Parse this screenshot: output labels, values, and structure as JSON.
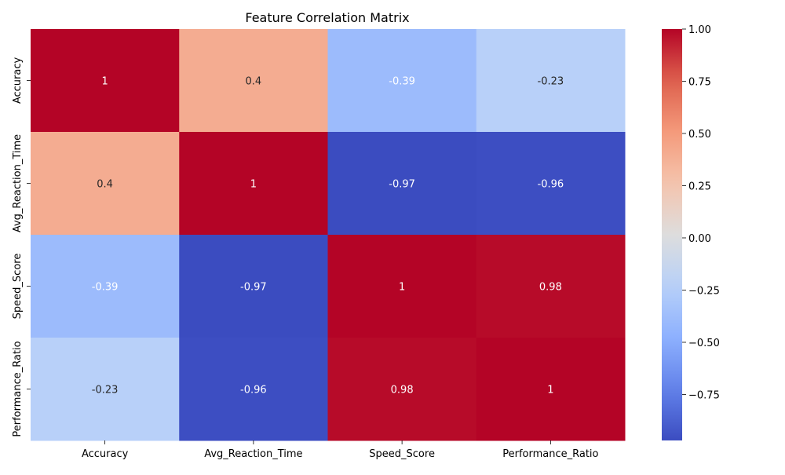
{
  "chart_data": {
    "type": "heatmap",
    "title": "Feature Correlation Matrix",
    "xlabel": "",
    "ylabel": "",
    "x_categories": [
      "Accuracy",
      "Avg_Reaction_Time",
      "Speed_Score",
      "Performance_Ratio"
    ],
    "y_categories": [
      "Accuracy",
      "Avg_Reaction_Time",
      "Speed_Score",
      "Performance_Ratio"
    ],
    "values": [
      [
        1,
        0.4,
        -0.39,
        -0.23
      ],
      [
        0.4,
        1,
        -0.97,
        -0.96
      ],
      [
        -0.39,
        -0.97,
        1,
        0.98
      ],
      [
        -0.23,
        -0.96,
        0.98,
        1
      ]
    ],
    "cell_labels": [
      [
        "1",
        "0.4",
        "-0.39",
        "-0.23"
      ],
      [
        "0.4",
        "1",
        "-0.97",
        "-0.96"
      ],
      [
        "-0.39",
        "-0.97",
        "1",
        "0.98"
      ],
      [
        "-0.23",
        "-0.96",
        "0.98",
        "1"
      ]
    ],
    "colormap": "coolwarm",
    "vmin": -0.97,
    "vmax": 1.0,
    "colorbar_ticks": [
      1.0,
      0.75,
      0.5,
      0.25,
      0.0,
      -0.25,
      -0.5,
      -0.75
    ],
    "colorbar_tick_labels": [
      "1.00",
      "0.75",
      "0.50",
      "0.25",
      "0.00",
      "−0.25",
      "−0.50",
      "−0.75"
    ],
    "colorbar_placement": "right",
    "grid": false
  }
}
